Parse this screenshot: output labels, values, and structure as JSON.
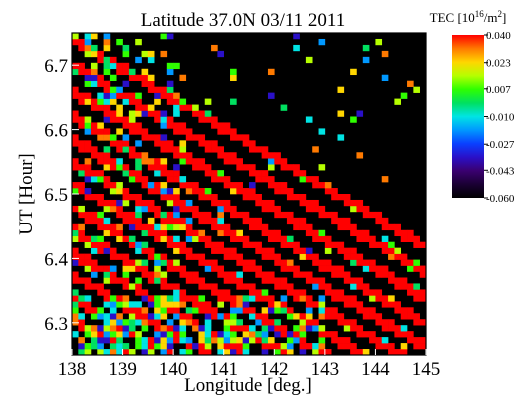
{
  "chart_data": {
    "type": "heatmap",
    "title": "Latitude 37.0N  03/11 2011",
    "xlabel": "Longitude [deg.]",
    "ylabel": "UT [Hour]",
    "xlim": [
      138,
      145
    ],
    "ylim": [
      6.25,
      6.75
    ],
    "x_ticks": [
      "138",
      "139",
      "140",
      "141",
      "142",
      "143",
      "144",
      "145"
    ],
    "y_ticks": [
      "6.3",
      "6.4",
      "6.5",
      "6.6",
      "6.7"
    ],
    "colorbar": {
      "title_prefix": "TEC [10",
      "title_exp1": "16",
      "title_mid": "/m",
      "title_exp2": "2",
      "title_suffix": "]",
      "range": [
        -0.06,
        0.04
      ],
      "ticks": [
        "0.040",
        "0.023",
        "0.007",
        "-0.010",
        "-0.027",
        "-0.043",
        "-0.060"
      ],
      "colors": [
        "#000000",
        "#1a0033",
        "#3a0070",
        "#2a10c8",
        "#0a40ff",
        "#0098ff",
        "#00e4e4",
        "#00e060",
        "#2fff00",
        "#b6ff00",
        "#ffd600",
        "#ff7a00",
        "#ff0000"
      ]
    },
    "pattern_description_bands": [
      {
        "ut_start": 6.74,
        "slope": -0.046,
        "width": 0.016
      },
      {
        "ut_start": 6.7,
        "slope": -0.046,
        "width": 0.017
      },
      {
        "ut_start": 6.66,
        "slope": -0.046,
        "width": 0.018
      },
      {
        "ut_start": 6.62,
        "slope": -0.046,
        "width": 0.018
      },
      {
        "ut_start": 6.585,
        "slope": -0.046,
        "width": 0.018
      },
      {
        "ut_start": 6.55,
        "slope": -0.046,
        "width": 0.018
      },
      {
        "ut_start": 6.515,
        "slope": -0.046,
        "width": 0.017
      },
      {
        "ut_start": 6.48,
        "slope": -0.046,
        "width": 0.017
      },
      {
        "ut_start": 6.445,
        "slope": -0.046,
        "width": 0.016
      },
      {
        "ut_start": 6.41,
        "slope": -0.046,
        "width": 0.016
      },
      {
        "ut_start": 6.375,
        "slope": -0.046,
        "width": 0.015
      },
      {
        "ut_start": 6.34,
        "slope": -0.046,
        "width": 0.014
      },
      {
        "ut_start": 6.305,
        "slope": -0.046,
        "width": 0.013
      }
    ]
  }
}
